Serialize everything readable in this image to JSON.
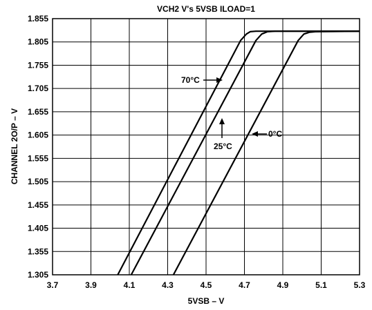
{
  "chart_data": {
    "type": "line",
    "title": "VCH2 V's 5VSB ILOAD=1",
    "xlabel": "5VSB – V",
    "ylabel": "CHANNEL 2O/P – V",
    "xlim": [
      3.7,
      5.3
    ],
    "ylim": [
      1.305,
      1.855
    ],
    "xticks": [
      "3.7",
      "3.9",
      "4.1",
      "4.3",
      "4.5",
      "4.7",
      "4.9",
      "5.1",
      "5.3"
    ],
    "yticks": [
      "1.305",
      "1.355",
      "1.405",
      "1.455",
      "1.505",
      "1.555",
      "1.605",
      "1.655",
      "1.705",
      "1.755",
      "1.805",
      "1.855"
    ],
    "grid": true,
    "series": [
      {
        "name": "70°C",
        "x": [
          4.04,
          4.68,
          4.71,
          4.73,
          4.76,
          5.3
        ],
        "y": [
          1.305,
          1.808,
          1.822,
          1.827,
          1.828,
          1.828
        ]
      },
      {
        "name": "25°C",
        "x": [
          4.11,
          4.76,
          4.79,
          4.82,
          4.86,
          5.3
        ],
        "y": [
          1.305,
          1.808,
          1.822,
          1.827,
          1.828,
          1.828
        ]
      },
      {
        "name": "0°C",
        "x": [
          4.33,
          4.98,
          5.01,
          5.04,
          5.07,
          5.3
        ],
        "y": [
          1.305,
          1.808,
          1.822,
          1.826,
          1.827,
          1.828
        ]
      }
    ],
    "annotations": [
      {
        "text": "70°C",
        "arrow": "right"
      },
      {
        "text": "25°C",
        "arrow": "up"
      },
      {
        "text": "0°C",
        "arrow": "left"
      }
    ]
  }
}
